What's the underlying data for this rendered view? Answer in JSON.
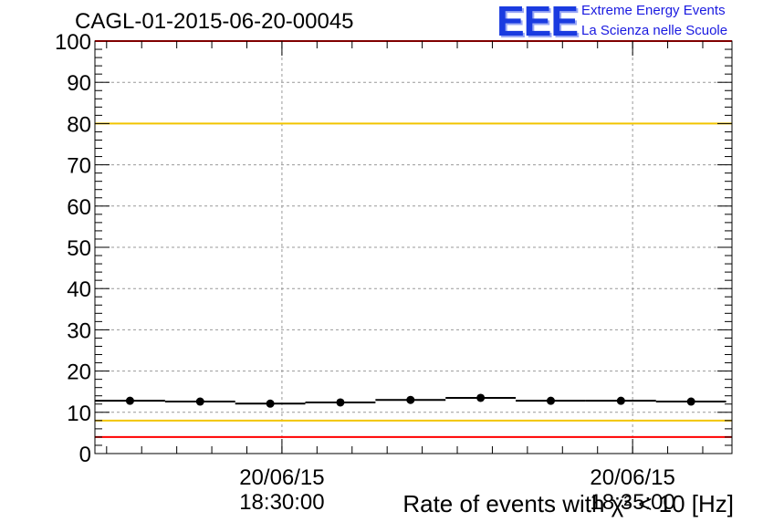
{
  "title": "CAGL-01-2015-06-20-00045",
  "logo": {
    "mark": "EEE",
    "line1": "Extreme Energy Events",
    "line2": "La Scienza nelle Scuole",
    "color": "#1a3be0"
  },
  "chart_data": {
    "type": "line",
    "title": "CAGL-01-2015-06-20-00045",
    "xlabel": "Rate of events with χ² < 10 [Hz]",
    "ylabel": "",
    "ylim": [
      0,
      100
    ],
    "yticks": [
      0,
      10,
      20,
      30,
      40,
      50,
      60,
      70,
      80,
      90,
      100
    ],
    "xrange": [
      "2015-06-20 18:27:20",
      "2015-06-20 18:36:25"
    ],
    "xticks": [
      {
        "time": "2015-06-20 18:30:00",
        "date_label": "20/06/15",
        "time_label": "18:30:00"
      },
      {
        "time": "2015-06-20 18:35:00",
        "date_label": "20/06/15",
        "time_label": "18:35:00"
      }
    ],
    "grid": true,
    "series": [
      {
        "points": [
          {
            "x": "2015-06-20 18:27:50",
            "y": 12.8
          },
          {
            "x": "2015-06-20 18:28:50",
            "y": 12.6
          },
          {
            "x": "2015-06-20 18:29:50",
            "y": 12.1
          },
          {
            "x": "2015-06-20 18:30:50",
            "y": 12.4
          },
          {
            "x": "2015-06-20 18:31:50",
            "y": 13.0
          },
          {
            "x": "2015-06-20 18:32:50",
            "y": 13.5
          },
          {
            "x": "2015-06-20 18:33:50",
            "y": 12.8
          },
          {
            "x": "2015-06-20 18:34:50",
            "y": 12.8
          },
          {
            "x": "2015-06-20 18:35:50",
            "y": 12.6
          }
        ],
        "bin_width_seconds": 60,
        "color": "#000000"
      }
    ],
    "reference_lines": [
      {
        "y": 100,
        "color": "#ff0000"
      },
      {
        "y": 80,
        "color": "#f2c500"
      },
      {
        "y": 8,
        "color": "#f2c500"
      },
      {
        "y": 4,
        "color": "#ff0000"
      }
    ]
  }
}
